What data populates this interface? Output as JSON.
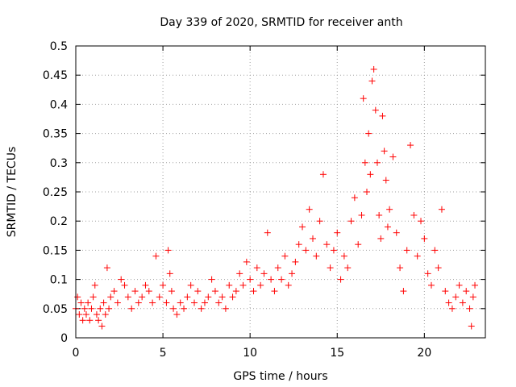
{
  "chart_data": {
    "type": "scatter",
    "title": "Day 339 of 2020, SRMTID for receiver anth",
    "xlabel": "GPS time / hours",
    "ylabel": "SRMTID / TECUs",
    "xlim": [
      0,
      23.5
    ],
    "ylim": [
      0,
      0.5
    ],
    "x_ticks": [
      0,
      5,
      10,
      15,
      20
    ],
    "y_ticks": [
      0,
      0.05,
      0.1,
      0.15,
      0.2,
      0.25,
      0.3,
      0.35,
      0.4,
      0.45,
      0.5
    ],
    "x_tick_labels": [
      "0",
      "5",
      "10",
      "15",
      "20"
    ],
    "y_tick_labels": [
      "0",
      "0.05",
      "0.1",
      "0.15",
      "0.2",
      "0.25",
      "0.3",
      "0.35",
      "0.4",
      "0.45",
      "0.5"
    ],
    "grid": true,
    "marker": "+",
    "series": [
      {
        "name": "SRMTID",
        "color": "#ff0000",
        "points": [
          [
            0.0,
            0.05
          ],
          [
            0.1,
            0.07
          ],
          [
            0.2,
            0.04
          ],
          [
            0.3,
            0.06
          ],
          [
            0.4,
            0.03
          ],
          [
            0.5,
            0.05
          ],
          [
            0.6,
            0.04
          ],
          [
            0.7,
            0.06
          ],
          [
            0.8,
            0.03
          ],
          [
            0.9,
            0.05
          ],
          [
            1.0,
            0.07
          ],
          [
            1.1,
            0.09
          ],
          [
            1.2,
            0.04
          ],
          [
            1.3,
            0.03
          ],
          [
            1.4,
            0.05
          ],
          [
            1.5,
            0.02
          ],
          [
            1.6,
            0.06
          ],
          [
            1.7,
            0.04
          ],
          [
            1.8,
            0.12
          ],
          [
            1.9,
            0.05
          ],
          [
            2.0,
            0.07
          ],
          [
            2.2,
            0.08
          ],
          [
            2.4,
            0.06
          ],
          [
            2.6,
            0.1
          ],
          [
            2.8,
            0.09
          ],
          [
            3.0,
            0.07
          ],
          [
            3.2,
            0.05
          ],
          [
            3.4,
            0.08
          ],
          [
            3.6,
            0.06
          ],
          [
            3.8,
            0.07
          ],
          [
            4.0,
            0.09
          ],
          [
            4.2,
            0.08
          ],
          [
            4.4,
            0.06
          ],
          [
            4.6,
            0.14
          ],
          [
            4.8,
            0.07
          ],
          [
            5.0,
            0.09
          ],
          [
            5.2,
            0.06
          ],
          [
            5.3,
            0.15
          ],
          [
            5.4,
            0.11
          ],
          [
            5.5,
            0.08
          ],
          [
            5.6,
            0.05
          ],
          [
            5.8,
            0.04
          ],
          [
            6.0,
            0.06
          ],
          [
            6.2,
            0.05
          ],
          [
            6.4,
            0.07
          ],
          [
            6.6,
            0.09
          ],
          [
            6.8,
            0.06
          ],
          [
            7.0,
            0.08
          ],
          [
            7.2,
            0.05
          ],
          [
            7.4,
            0.06
          ],
          [
            7.6,
            0.07
          ],
          [
            7.8,
            0.1
          ],
          [
            8.0,
            0.08
          ],
          [
            8.2,
            0.06
          ],
          [
            8.4,
            0.07
          ],
          [
            8.6,
            0.05
          ],
          [
            8.8,
            0.09
          ],
          [
            9.0,
            0.07
          ],
          [
            9.2,
            0.08
          ],
          [
            9.4,
            0.11
          ],
          [
            9.6,
            0.09
          ],
          [
            9.8,
            0.13
          ],
          [
            10.0,
            0.1
          ],
          [
            10.2,
            0.08
          ],
          [
            10.4,
            0.12
          ],
          [
            10.6,
            0.09
          ],
          [
            10.8,
            0.11
          ],
          [
            11.0,
            0.18
          ],
          [
            11.2,
            0.1
          ],
          [
            11.4,
            0.08
          ],
          [
            11.6,
            0.12
          ],
          [
            11.8,
            0.1
          ],
          [
            12.0,
            0.14
          ],
          [
            12.2,
            0.09
          ],
          [
            12.4,
            0.11
          ],
          [
            12.6,
            0.13
          ],
          [
            12.8,
            0.16
          ],
          [
            13.0,
            0.19
          ],
          [
            13.2,
            0.15
          ],
          [
            13.4,
            0.22
          ],
          [
            13.6,
            0.17
          ],
          [
            13.8,
            0.14
          ],
          [
            14.0,
            0.2
          ],
          [
            14.2,
            0.28
          ],
          [
            14.4,
            0.16
          ],
          [
            14.6,
            0.12
          ],
          [
            14.8,
            0.15
          ],
          [
            15.0,
            0.18
          ],
          [
            15.2,
            0.1
          ],
          [
            15.4,
            0.14
          ],
          [
            15.6,
            0.12
          ],
          [
            15.8,
            0.2
          ],
          [
            16.0,
            0.24
          ],
          [
            16.2,
            0.16
          ],
          [
            16.4,
            0.21
          ],
          [
            16.5,
            0.41
          ],
          [
            16.6,
            0.3
          ],
          [
            16.7,
            0.25
          ],
          [
            16.8,
            0.35
          ],
          [
            16.9,
            0.28
          ],
          [
            17.0,
            0.44
          ],
          [
            17.1,
            0.46
          ],
          [
            17.2,
            0.39
          ],
          [
            17.3,
            0.3
          ],
          [
            17.4,
            0.21
          ],
          [
            17.5,
            0.17
          ],
          [
            17.6,
            0.38
          ],
          [
            17.7,
            0.32
          ],
          [
            17.8,
            0.27
          ],
          [
            17.9,
            0.19
          ],
          [
            18.0,
            0.22
          ],
          [
            18.2,
            0.31
          ],
          [
            18.4,
            0.18
          ],
          [
            18.6,
            0.12
          ],
          [
            18.8,
            0.08
          ],
          [
            19.0,
            0.15
          ],
          [
            19.2,
            0.33
          ],
          [
            19.4,
            0.21
          ],
          [
            19.6,
            0.14
          ],
          [
            19.8,
            0.2
          ],
          [
            20.0,
            0.17
          ],
          [
            20.2,
            0.11
          ],
          [
            20.4,
            0.09
          ],
          [
            20.6,
            0.15
          ],
          [
            20.8,
            0.12
          ],
          [
            21.0,
            0.22
          ],
          [
            21.2,
            0.08
          ],
          [
            21.4,
            0.06
          ],
          [
            21.6,
            0.05
          ],
          [
            21.8,
            0.07
          ],
          [
            22.0,
            0.09
          ],
          [
            22.2,
            0.06
          ],
          [
            22.4,
            0.08
          ],
          [
            22.6,
            0.05
          ],
          [
            22.7,
            0.02
          ],
          [
            22.8,
            0.07
          ],
          [
            22.9,
            0.09
          ]
        ]
      }
    ]
  }
}
